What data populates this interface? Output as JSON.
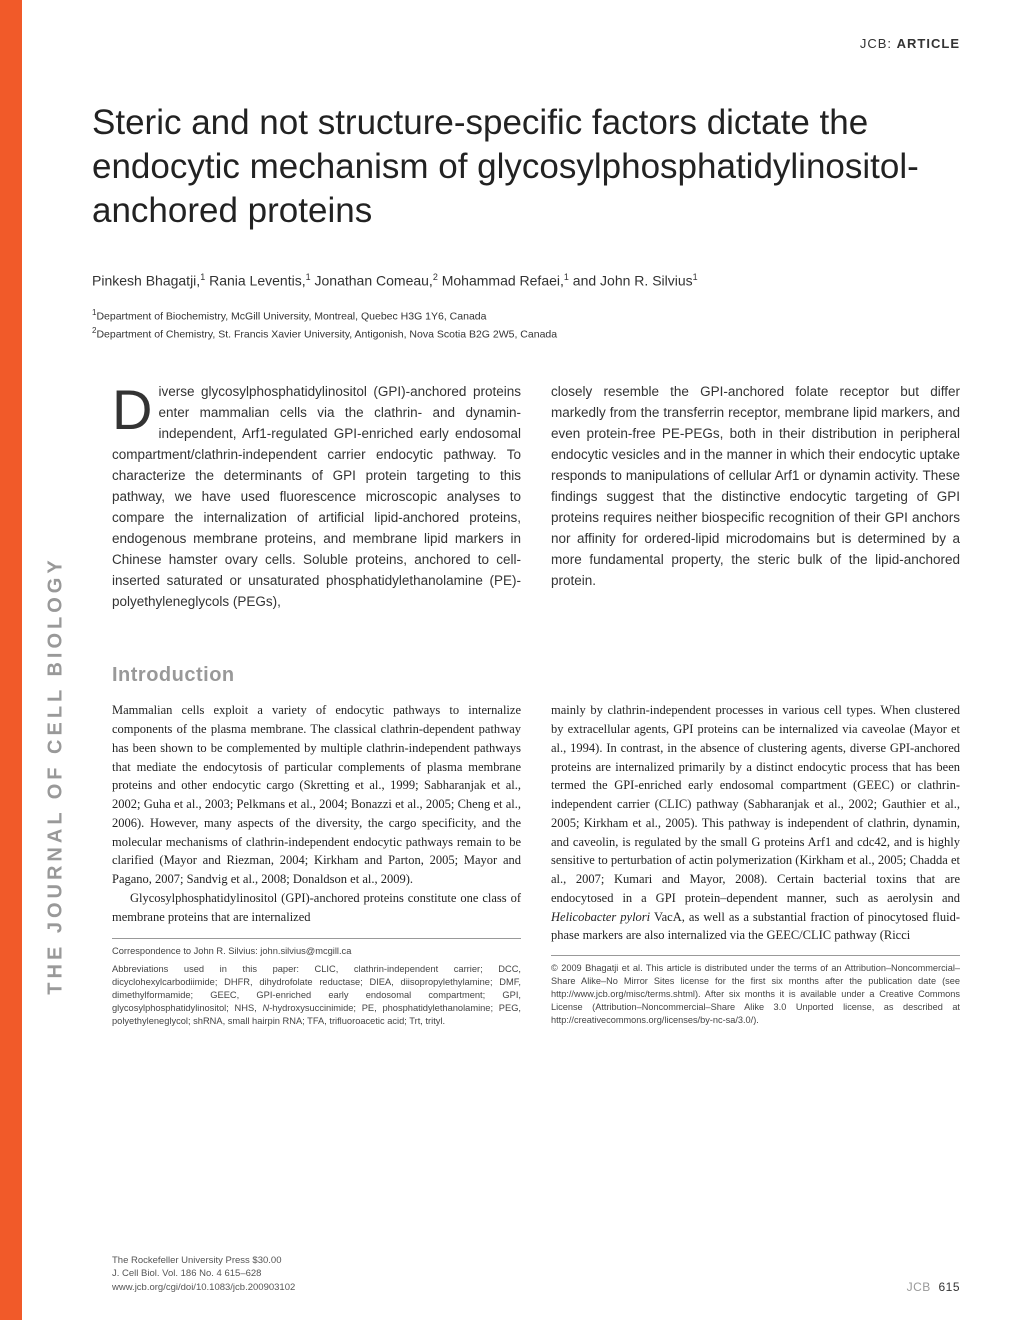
{
  "header": {
    "jcb": "JCB:",
    "article": "ARTICLE"
  },
  "title": "Steric and not structure-specific factors dictate the endocytic mechanism of glycosylphosphatidylinositol-anchored proteins",
  "authors_html": "Pinkesh Bhagatji,<sup>1</sup> Rania Leventis,<sup>1</sup> Jonathan Comeau,<sup>2</sup> Mohammad Refaei,<sup>1</sup> and John R. Silvius<sup>1</sup>",
  "affiliations": {
    "a1": "Department of Biochemistry, McGill University, Montreal, Quebec H3G 1Y6, Canada",
    "a2": "Department of Chemistry, St. Francis Xavier University, Antigonish, Nova Scotia B2G 2W5, Canada"
  },
  "abstract": {
    "dropcap": "D",
    "left": "iverse glycosylphosphatidylinositol (GPI)-anchored proteins enter mammalian cells via the clathrin- and dynamin-independent, Arf1-regulated GPI-enriched early endosomal compartment/clathrin-independent carrier endocytic pathway. To characterize the determinants of GPI protein targeting to this pathway, we have used fluorescence microscopic analyses to compare the internalization of artificial lipid-anchored proteins, endogenous membrane proteins, and membrane lipid markers in Chinese hamster ovary cells. Soluble proteins, anchored to cell-inserted saturated or unsaturated phosphatidylethanolamine (PE)-polyethyleneglycols (PEGs),",
    "right": "closely resemble the GPI-anchored folate receptor but differ markedly from the transferrin receptor, membrane lipid markers, and even protein-free PE-PEGs, both in their distribution in peripheral endocytic vesicles and in the manner in which their endocytic uptake responds to manipulations of cellular Arf1 or dynamin activity. These findings suggest that the distinctive endocytic targeting of GPI proteins requires neither biospecific recognition of their GPI anchors nor affinity for ordered-lipid microdomains but is determined by a more fundamental property, the steric bulk of the lipid-anchored protein."
  },
  "side_label": "THE JOURNAL OF CELL BIOLOGY",
  "intro_heading": "Introduction",
  "body": {
    "left_p1": "Mammalian cells exploit a variety of endocytic pathways to internalize components of the plasma membrane. The classical clathrin-dependent pathway has been shown to be complemented by multiple clathrin-independent pathways that mediate the endocytosis of particular complements of plasma membrane proteins and other endocytic cargo (Skretting et al., 1999; Sabharanjak et al., 2002; Guha et al., 2003; Pelkmans et al., 2004; Bonazzi et al., 2005; Cheng et al., 2006). However, many aspects of the diversity, the cargo specificity, and the molecular mechanisms of clathrin-independent endocytic pathways remain to be clarified (Mayor and Riezman, 2004; Kirkham and Parton, 2005; Mayor and Pagano, 2007; Sandvig et al., 2008; Donaldson et al., 2009).",
    "left_p2": "Glycosylphosphatidylinositol (GPI)-anchored proteins constitute one class of membrane proteins that are internalized",
    "right_html": "mainly by clathrin-independent processes in various cell types. When clustered by extracellular agents, GPI proteins can be internalized via caveolae (Mayor et al., 1994). In contrast, in the absence of clustering agents, diverse GPI-anchored proteins are internalized primarily by a distinct endocytic process that has been termed the GPI-enriched early endosomal compartment (GEEC) or clathrin-independent carrier (CLIC) pathway (Sabharanjak et al., 2002; Gauthier et al., 2005; Kirkham et al., 2005). This pathway is independent of clathrin, dynamin, and caveolin, is regulated by the small G proteins Arf1 and cdc42, and is highly sensitive to perturbation of actin polymerization (Kirkham et al., 2005; Chadda et al., 2007; Kumari and Mayor, 2008). Certain bacterial toxins that are endocytosed in a GPI protein–dependent manner, such as aerolysin and <span class=\"italic\">Helicobacter pylori</span> VacA, as well as a substantial fraction of pinocytosed fluid-phase markers are also internalized via the GEEC/CLIC pathway (Ricci"
  },
  "footnotes": {
    "correspondence": "Correspondence to John R. Silvius: john.silvius@mcgill.ca",
    "abbrev_html": "Abbreviations used in this paper: CLIC, clathrin-independent carrier; DCC, dicyclohexylcarbodiimide; DHFR, dihydrofolate reductase; DIEA, diisopropylethylamine; DMF, dimethylformamide; GEEC, GPI-enriched early endosomal compartment; GPI, glycosylphosphatidylinositol; NHS, <span class=\"italic\">N</span>-hydroxysuccinimide; PE, phosphatidylethanolamine; PEG, polyethyleneglycol; shRNA, small hairpin RNA; TFA, trifluoroacetic acid; Trt, trityl."
  },
  "copyright": "© 2009 Bhagatji et al. This article is distributed under the terms of an Attribution–Noncommercial–Share Alike–No Mirror Sites license for the first six months after the publication date (see http://www.jcb.org/misc/terms.shtml). After six months it is available under a Creative Commons License (Attribution–Noncommercial–Share Alike 3.0 Unported license, as described at http://creativecommons.org/licenses/by-nc-sa/3.0/).",
  "footer": {
    "publisher": "The Rockefeller University Press   $30.00",
    "citation": "J. Cell Biol. Vol. 186 No. 4   615–628",
    "doi": "www.jcb.org/cgi/doi/10.1083/jcb.200903102",
    "jcb": "JCB",
    "page": "615"
  },
  "colors": {
    "orange": "#f15a29",
    "gray_heading": "#999999",
    "text": "#222222"
  }
}
